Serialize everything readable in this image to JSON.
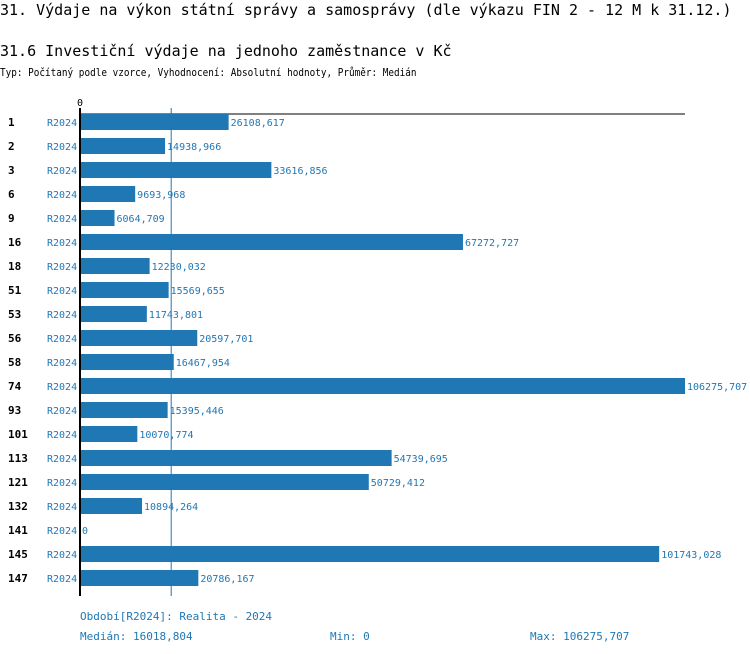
{
  "title": "31. Výdaje na výkon státní správy a samosprávy (dle výkazu FIN 2 - 12 M k 31.12.)",
  "subtitle": "31.6 Investiční výdaje na jednoho zaměstnance v Kč",
  "meta": "Typ: Počítaný podle vzorce, Vyhodnocení: Absolutní hodnoty, Průměr: Medián",
  "footer": {
    "period": "Období[R2024]: Realita - 2024",
    "median": "Medián: 16018,804",
    "min": "Min: 0",
    "max": "Max: 106275,707"
  },
  "colors": {
    "bar": "#1f77b4",
    "text": "#1f77b4"
  },
  "chart_data": {
    "type": "bar",
    "orientation": "horizontal",
    "xlim": [
      0,
      106275.707
    ],
    "x_tick_label": "0",
    "median": 16018.804,
    "series_label": "R2024",
    "categories": [
      "1",
      "2",
      "3",
      "6",
      "9",
      "16",
      "18",
      "51",
      "53",
      "56",
      "58",
      "74",
      "93",
      "101",
      "113",
      "121",
      "132",
      "141",
      "145",
      "147"
    ],
    "values": [
      26108.617,
      14938.966,
      33616.856,
      9693.968,
      6064.709,
      67272.727,
      12230.032,
      15569.655,
      11743.801,
      20597.701,
      16467.954,
      106275.707,
      15395.446,
      10070.774,
      54739.695,
      50729.412,
      10894.264,
      0,
      101743.028,
      20786.167
    ],
    "labels": [
      "26108,617",
      "14938,966",
      "33616,856",
      "9693,968",
      "6064,709",
      "67272,727",
      "12230,032",
      "15569,655",
      "11743,801",
      "20597,701",
      "16467,954",
      "106275,707",
      "15395,446",
      "10070,774",
      "54739,695",
      "50729,412",
      "10894,264",
      "0",
      "101743,028",
      "20786,167"
    ]
  }
}
